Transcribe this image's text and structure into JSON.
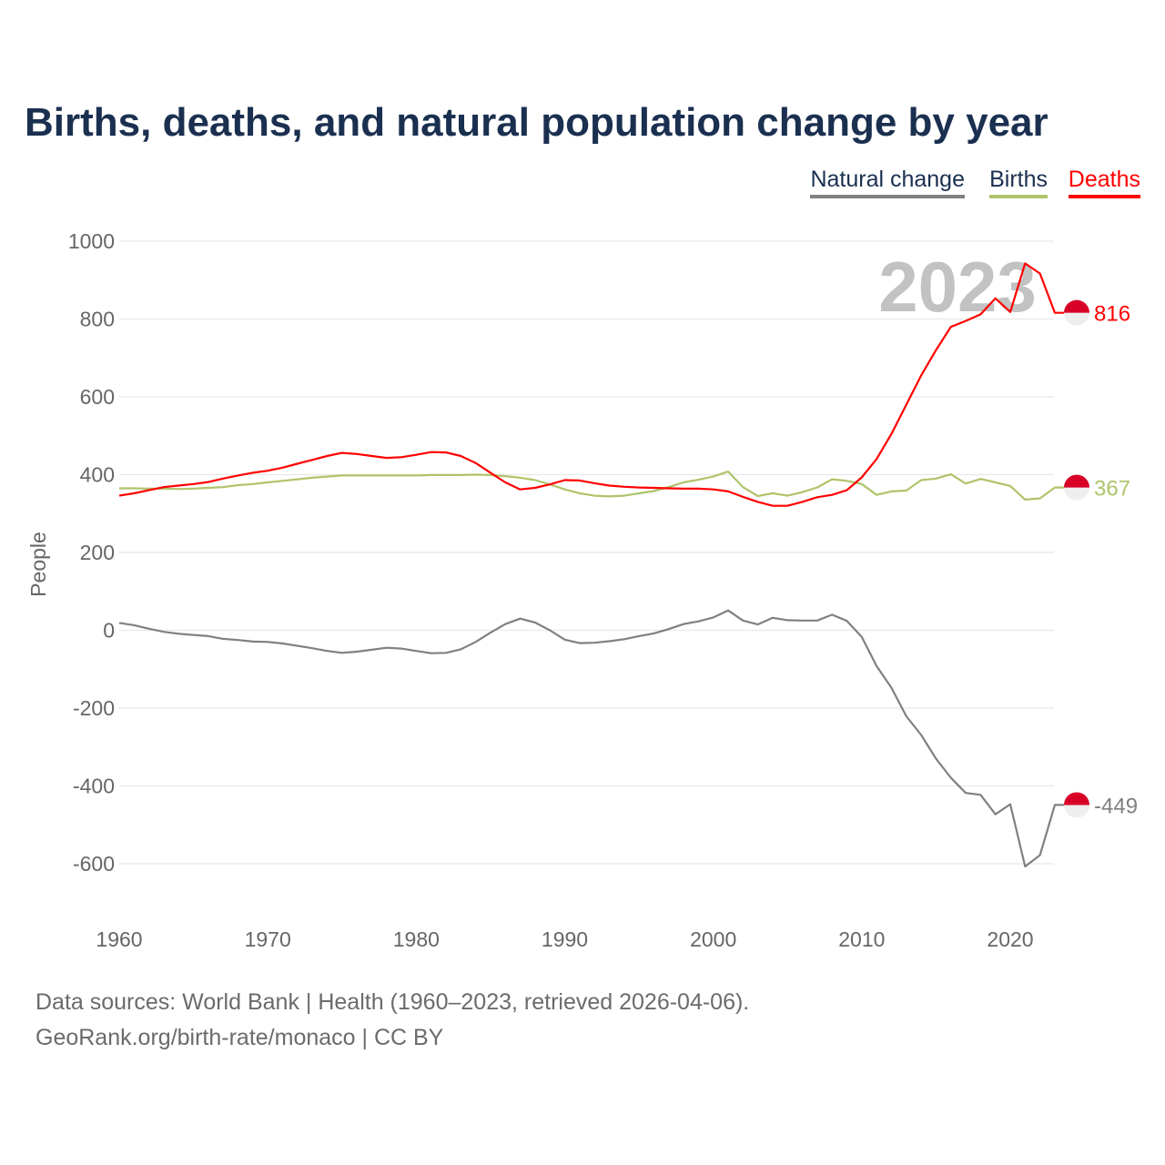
{
  "chart_data": {
    "type": "line",
    "title": "Births, deaths, and natural population change by year",
    "xlabel": "",
    "ylabel": "People",
    "xlim": [
      1960,
      2023
    ],
    "ylim": [
      -600,
      1000
    ],
    "yticks": [
      1000,
      800,
      600,
      400,
      200,
      0,
      -200,
      -400,
      -600
    ],
    "xticks": [
      1960,
      1970,
      1980,
      1990,
      2000,
      2010,
      2020
    ],
    "grid": true,
    "legend_position": "top-right",
    "year_watermark": "2023",
    "x": [
      1960,
      1961,
      1962,
      1963,
      1964,
      1965,
      1966,
      1967,
      1968,
      1969,
      1970,
      1971,
      1972,
      1973,
      1974,
      1975,
      1976,
      1977,
      1978,
      1979,
      1980,
      1981,
      1982,
      1983,
      1984,
      1985,
      1986,
      1987,
      1988,
      1989,
      1990,
      1991,
      1992,
      1993,
      1994,
      1995,
      1996,
      1997,
      1998,
      1999,
      2000,
      2001,
      2002,
      2003,
      2004,
      2005,
      2006,
      2007,
      2008,
      2009,
      2010,
      2011,
      2012,
      2013,
      2014,
      2015,
      2016,
      2017,
      2018,
      2019,
      2020,
      2021,
      2022,
      2023
    ],
    "series": [
      {
        "name": "Natural change",
        "color": "#808080",
        "end_label": "-449",
        "values": [
          19,
          13,
          4,
          -4,
          -9,
          -12,
          -15,
          -22,
          -25,
          -29,
          -30,
          -34,
          -40,
          -46,
          -53,
          -58,
          -55,
          -50,
          -45,
          -47,
          -53,
          -59,
          -58,
          -49,
          -30,
          -6,
          16,
          30,
          20,
          0,
          -24,
          -33,
          -32,
          -28,
          -23,
          -15,
          -8,
          3,
          16,
          23,
          33,
          51,
          25,
          15,
          32,
          26,
          25,
          25,
          40,
          24,
          -17,
          -92,
          -148,
          -221,
          -269,
          -330,
          -379,
          -418,
          -423,
          -473,
          -447,
          -607,
          -578,
          -449
        ]
      },
      {
        "name": "Births",
        "color": "#afc46a",
        "end_label": "367",
        "values": [
          365,
          365,
          364,
          364,
          363,
          364,
          366,
          368,
          373,
          376,
          380,
          384,
          388,
          392,
          395,
          398,
          398,
          398,
          398,
          398,
          398,
          399,
          399,
          399,
          400,
          399,
          396,
          392,
          386,
          375,
          362,
          352,
          346,
          344,
          346,
          352,
          358,
          368,
          380,
          387,
          395,
          408,
          368,
          345,
          352,
          346,
          355,
          367,
          388,
          384,
          376,
          348,
          357,
          359,
          386,
          390,
          401,
          377,
          389,
          380,
          371,
          336,
          339,
          367
        ]
      },
      {
        "name": "Deaths",
        "color": "#ff0000",
        "end_label": "816",
        "values": [
          346,
          352,
          360,
          368,
          372,
          376,
          381,
          390,
          398,
          405,
          410,
          418,
          428,
          438,
          448,
          456,
          453,
          448,
          443,
          445,
          451,
          458,
          457,
          448,
          430,
          405,
          380,
          362,
          366,
          375,
          386,
          385,
          378,
          372,
          369,
          367,
          366,
          365,
          364,
          364,
          362,
          357,
          343,
          330,
          320,
          320,
          330,
          342,
          348,
          360,
          393,
          440,
          505,
          580,
          655,
          720,
          780,
          795,
          812,
          853,
          818,
          943,
          917,
          816
        ]
      }
    ]
  },
  "legend": [
    "Natural change",
    "Births",
    "Deaths"
  ],
  "legend_colors": [
    "#808080",
    "#afc46a",
    "#ff0000"
  ],
  "legend_text_color": "#1b3050",
  "marker_color": "#d80027",
  "footer": {
    "line1": "Data sources: World Bank | Health (1960–2023, retrieved 2026-04-06).",
    "line2": "GeoRank.org/birth-rate/monaco | CC BY"
  }
}
